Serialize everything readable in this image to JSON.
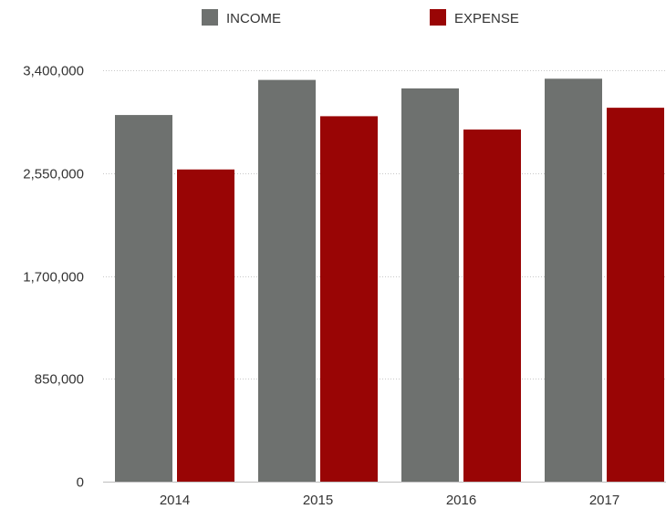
{
  "chart_data": {
    "type": "bar",
    "categories": [
      "2014",
      "2015",
      "2016",
      "2017"
    ],
    "series": [
      {
        "name": "INCOME",
        "color": "#6e716f",
        "values": [
          3030000,
          3320000,
          3250000,
          3330000
        ]
      },
      {
        "name": "EXPENSE",
        "color": "#990505",
        "values": [
          2580000,
          3020000,
          2910000,
          3090000
        ]
      }
    ],
    "yticks": [
      {
        "value": 0,
        "label": "0"
      },
      {
        "value": 850000,
        "label": "850,000"
      },
      {
        "value": 1700000,
        "label": "1,700,000"
      },
      {
        "value": 2550000,
        "label": "2,550,000"
      },
      {
        "value": 3400000,
        "label": "3,400,000"
      }
    ],
    "ylim": [
      0,
      3400000
    ],
    "legend_position": "top-center",
    "grid": "horizontal-dotted",
    "title": "",
    "xlabel": "",
    "ylabel": ""
  }
}
